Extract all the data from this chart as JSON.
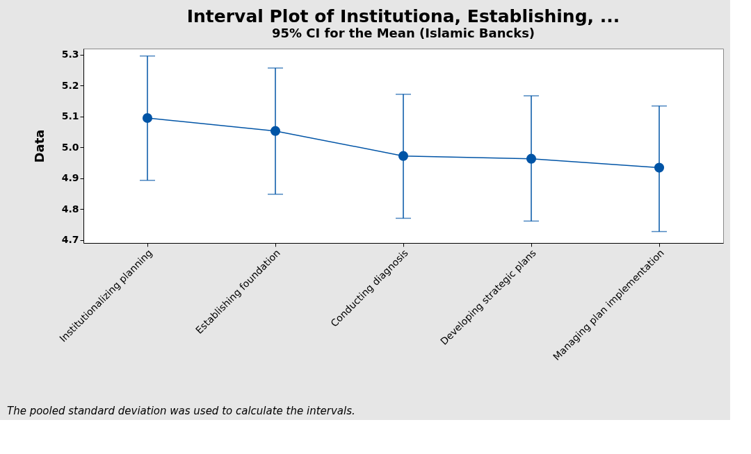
{
  "chart_data": {
    "type": "line",
    "title": "Interval Plot of Institutiona, Establishing, ...",
    "subtitle": "95% CI for the Mean (Islamic Bancks)",
    "ylabel": "Data",
    "categories": [
      "Institutionalizing planning",
      "Establishing foundation",
      "Conducting diagnosis",
      "Developing strategic plans",
      "Managing plan implementation"
    ],
    "series": [
      {
        "color": "#0054a6",
        "values": [
          5.095,
          5.053,
          4.972,
          4.963,
          4.934
        ],
        "errors": [
          [
            4.893,
            5.296
          ],
          [
            4.848,
            5.257
          ],
          [
            4.77,
            5.172
          ],
          [
            4.761,
            5.167
          ],
          [
            4.727,
            5.134
          ]
        ]
      }
    ],
    "ylim": [
      4.69,
      5.32
    ],
    "yticks": [
      4.7,
      4.8,
      4.9,
      {
        "value": 5.0,
        "label": "5.0"
      },
      5.1,
      5.2,
      5.3
    ],
    "marker": "circle",
    "line_style": "solid",
    "grid": false,
    "annotations": [
      "The pooled standard deviation was used to calculate the intervals."
    ]
  }
}
